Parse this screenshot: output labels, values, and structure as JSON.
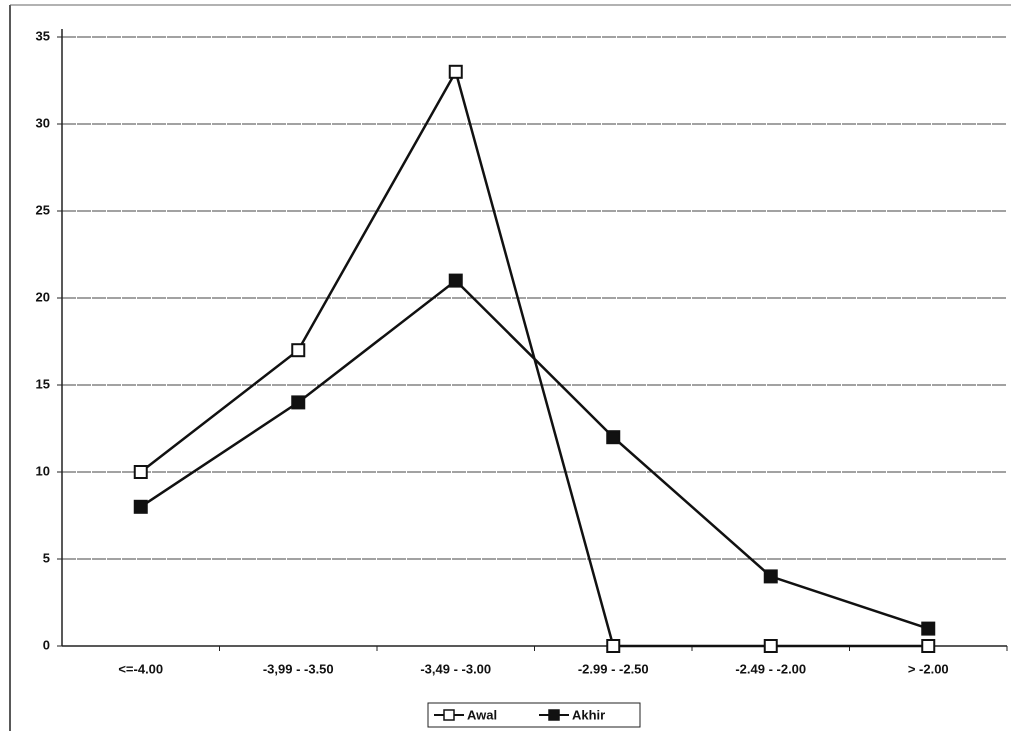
{
  "chart_data": {
    "type": "line",
    "categories": [
      "<=-4.00",
      "-3,99 - -3.50",
      "-3,49 - -3.00",
      "-2.99 - -2.50",
      "-2.49 - -2.00",
      "> -2.00"
    ],
    "series": [
      {
        "name": "Awal",
        "color": "#111111",
        "marker": "open-square",
        "values": [
          10,
          17,
          33,
          0,
          0,
          0
        ]
      },
      {
        "name": "Akhir",
        "color": "#111111",
        "marker": "filled-square",
        "values": [
          8,
          14,
          21,
          12,
          4,
          1
        ]
      }
    ],
    "ylim": [
      0,
      35
    ],
    "yticks": [
      0,
      5,
      10,
      15,
      20,
      25,
      30,
      35
    ],
    "grid": true,
    "legend": "bottom"
  }
}
